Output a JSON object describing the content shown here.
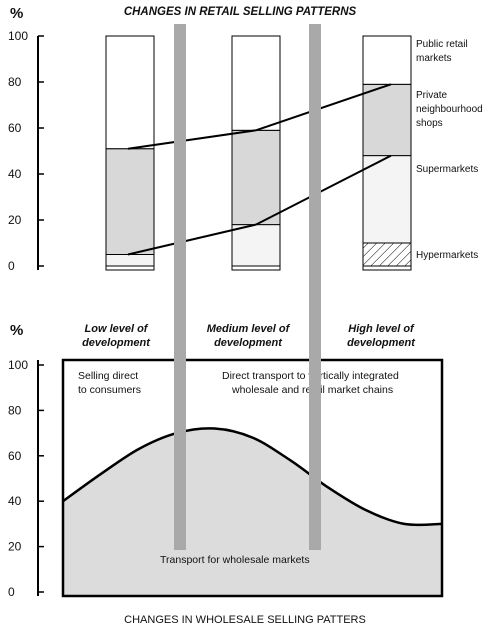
{
  "top_chart": {
    "title": "CHANGES IN RETAIL SELLING PATTERNS",
    "y_unit": "%",
    "y_ticks": [
      "100",
      "80",
      "60",
      "40",
      "20",
      "0"
    ],
    "legend": {
      "public": "Public retail markets",
      "private": "Private neighbourhood shops",
      "supermarkets": "Supermarkets",
      "hypermarkets": "Hypermarkets"
    }
  },
  "bottom_chart": {
    "y_unit": "%",
    "y_ticks": [
      "100",
      "80",
      "60",
      "40",
      "20",
      "0"
    ],
    "levels": {
      "low": "Low level of development",
      "medium": "Medium level of development",
      "high": "High level of development"
    },
    "notes": {
      "selling_direct": "Selling direct to consumers",
      "direct_transport": "Direct transport to vertically integrated wholesale and retail market chains",
      "transport_wholesale": "Transport for wholesale markets"
    },
    "footer": "CHANGES IN WHOLESALE SELLING PATTERS"
  },
  "chart_data": [
    {
      "type": "bar",
      "title": "CHANGES IN RETAIL SELLING PATTERNS",
      "ylabel": "%",
      "ylim": [
        0,
        100
      ],
      "stacked": true,
      "categories": [
        "",
        "",
        ""
      ],
      "series": [
        {
          "name": "Hypermarkets",
          "values": [
            0,
            0,
            10
          ]
        },
        {
          "name": "Supermarkets",
          "values": [
            5,
            18,
            38
          ]
        },
        {
          "name": "Private neighbourhood shops",
          "values": [
            46,
            41,
            31
          ]
        },
        {
          "name": "Public retail markets",
          "values": [
            49,
            41,
            21
          ]
        }
      ]
    },
    {
      "type": "area",
      "ylabel": "%",
      "ylim": [
        0,
        100
      ],
      "x": [
        0,
        10,
        20,
        30,
        40,
        50,
        60,
        70,
        80,
        90,
        100
      ],
      "series": [
        {
          "values": [
            40,
            52,
            63,
            70,
            72,
            68,
            58,
            46,
            36,
            30,
            30
          ]
        }
      ]
    }
  ]
}
